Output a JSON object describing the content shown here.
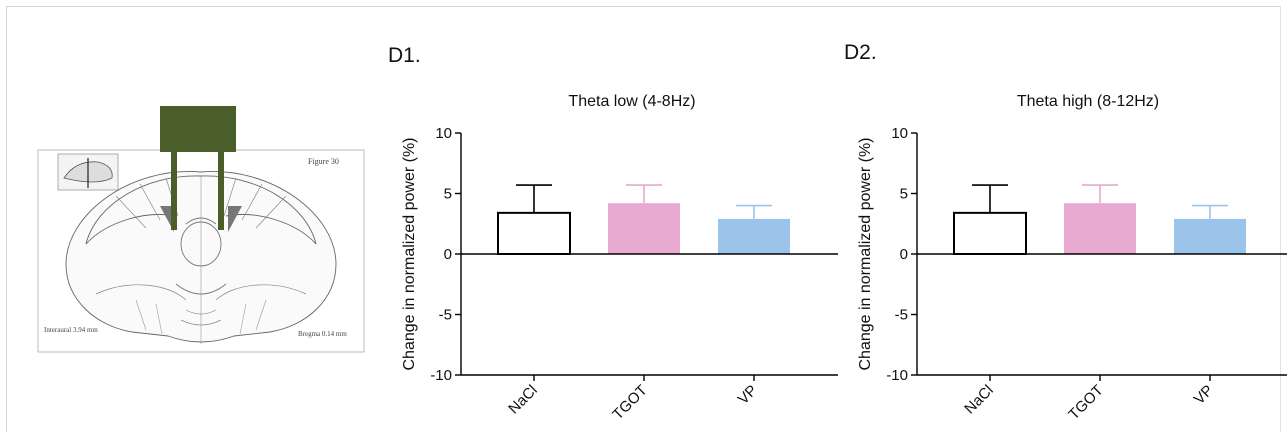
{
  "panels": {
    "d1_label": "D1.",
    "d2_label": "D2."
  },
  "atlas": {
    "figure_label": "Figure 30",
    "interaural_label": "Interaural 3.94 mm",
    "bregma_label": "Bregma 0.14 mm"
  },
  "colors": {
    "NaCl": "#ffffff",
    "TGOT": "#e8aad0",
    "VP": "#9cc3ea",
    "error_NaCl": "#000000",
    "error_TGOT": "#e8aad0",
    "error_VP": "#9cc3ea",
    "probe": "#4a5e2c"
  },
  "chart_data": [
    {
      "type": "bar",
      "title": "Theta low (4-8Hz)",
      "ylabel": "Change in normalized power (%)",
      "xlabel": "",
      "categories": [
        "NaCl",
        "TGOT",
        "VP"
      ],
      "values": [
        3.4,
        4.2,
        2.9
      ],
      "errors": [
        2.3,
        1.5,
        1.1
      ],
      "ylim": [
        -10,
        10
      ],
      "yticks": [
        10,
        5,
        0,
        -5,
        -10
      ],
      "grid": false
    },
    {
      "type": "bar",
      "title": "Theta high (8-12Hz)",
      "ylabel": "Change in normalized power (%)",
      "xlabel": "",
      "categories": [
        "NaCl",
        "TGOT",
        "VP"
      ],
      "values": [
        3.4,
        4.2,
        2.9
      ],
      "errors": [
        2.3,
        1.5,
        1.1
      ],
      "ylim": [
        -10,
        10
      ],
      "yticks": [
        10,
        5,
        0,
        -5,
        -10
      ],
      "grid": false
    }
  ]
}
